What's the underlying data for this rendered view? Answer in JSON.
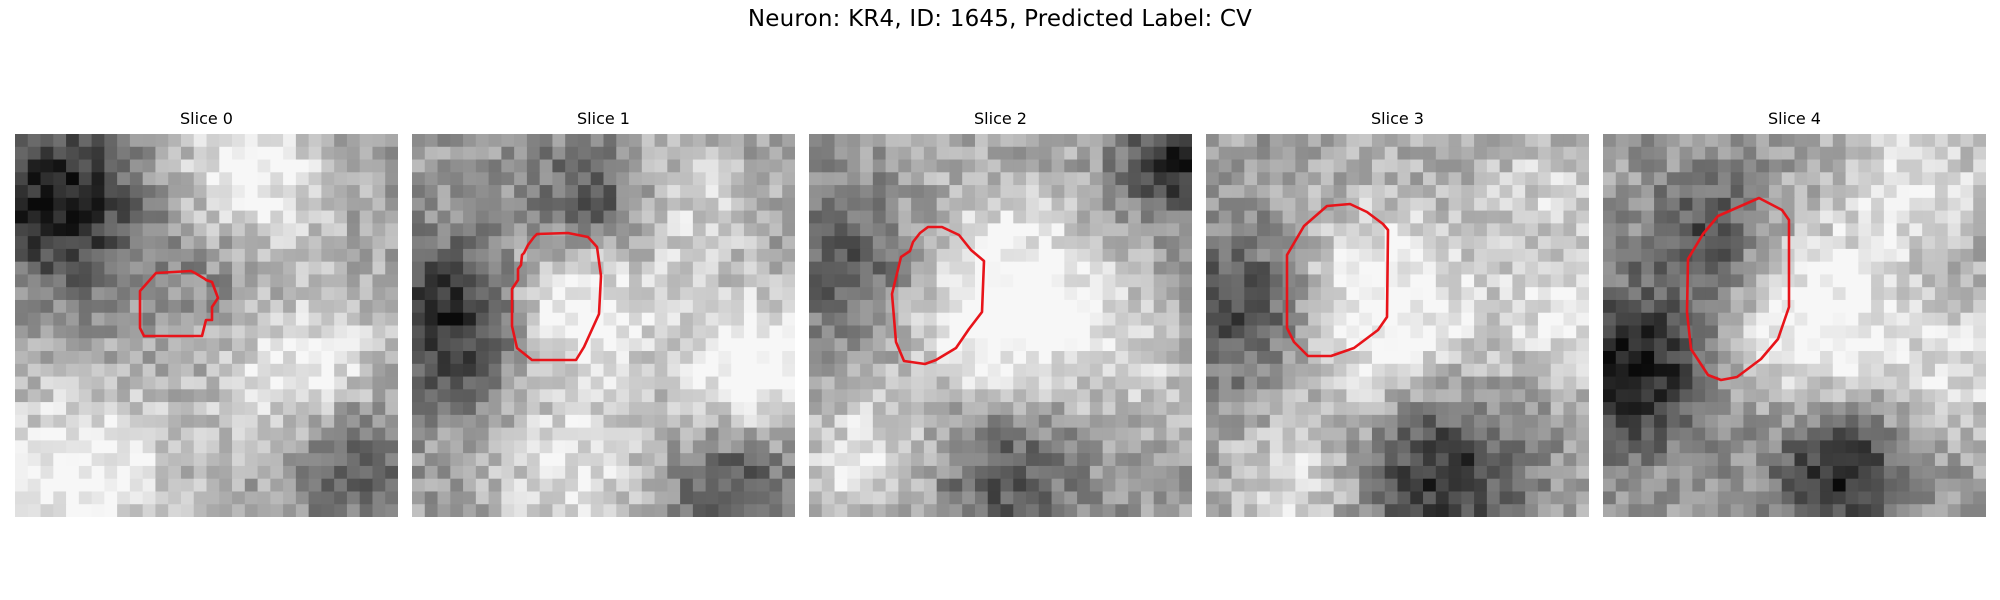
{
  "figure": {
    "title": "Neuron: KR4, ID: 1645, Predicted Label: CV"
  },
  "panels": [
    {
      "title": "Slice 0"
    },
    {
      "title": "Slice 1"
    },
    {
      "title": "Slice 2"
    },
    {
      "title": "Slice 3"
    },
    {
      "title": "Slice 4"
    }
  ],
  "colors": {
    "contour": "#e8141a"
  }
}
